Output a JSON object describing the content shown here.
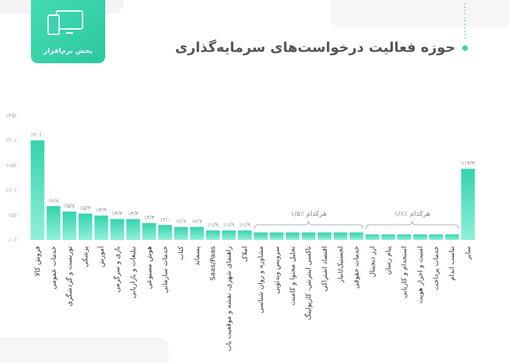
{
  "header": {
    "title": "حوزه فعالیت درخواست‌های سرمایه‌گذاری",
    "badge": "بخش نرم‌افزار"
  },
  "chart_data": {
    "type": "bar",
    "categories": [
      "فروش کالا",
      "خدمات عمومی",
      "توریست و گردشگری",
      "پزشکی",
      "آموزش",
      "بازی و سرگرمی",
      "تبلیغات و بازاریابی",
      "هوش مصنوعی",
      "خدمات سازمانی",
      "کتاب",
      "پسماند",
      "Saas/Paas",
      "راهنمای شهری، نقشه و موقعیت یاب",
      "املاک",
      "مشاوره و روان شناسی",
      "سرویس ویدئویی",
      "تحلیل محتوا و کامنت",
      "تاکسی اینترنتی، کارپولینگ",
      "اقتصاد اشتراکی",
      "لجستیک/انبار",
      "خدمات حقوقی",
      "ارز دیجیتال",
      "پیام رسان",
      "استخدام و کاریابی",
      "امنیت و احراز هویت",
      "خدمات پرداخت",
      "تناسب اندام",
      "سایر"
    ],
    "values": [
      20.0,
      6.8,
      5.7,
      5.3,
      4.9,
      4.2,
      4.2,
      3.4,
      3.0,
      2.6,
      2.6,
      1.9,
      1.9,
      1.9,
      1.5,
      1.5,
      1.5,
      1.5,
      1.5,
      1.5,
      1.5,
      1.1,
      1.1,
      1.1,
      1.1,
      1.1,
      1.1,
      14.3
    ],
    "value_labels": [
      "٪۲۰/۰",
      "٪۶/۸",
      "٪۵/۷",
      "٪۵/۳",
      "٪۴/۹",
      "٪۴/۲",
      "٪۴/۲",
      "٪۳/۴",
      "٪۳/۰",
      "٪۲/۶",
      "٪۲/۶",
      "٪۱/۹",
      "٪۱/۹",
      "٪۱/۹",
      null,
      null,
      null,
      null,
      null,
      null,
      null,
      null,
      null,
      null,
      null,
      null,
      null,
      "٪۱۴/۳"
    ],
    "color": "#34d3ad",
    "ylim": [
      0,
      25
    ],
    "yticks": [
      {
        "value": 0,
        "label": "٪۰/۰"
      },
      {
        "value": 5,
        "label": "٪۵/۰"
      },
      {
        "value": 10,
        "label": "٪۱۰/۰"
      },
      {
        "value": 15,
        "label": "٪۱۵/۰"
      },
      {
        "value": 20,
        "label": "٪۲۰/۰"
      },
      {
        "value": 25,
        "label": "٪۲۵/۰"
      }
    ],
    "annotations": [
      "هرکدام ٪۱/۵",
      "هرکدام ٪۱/۱"
    ]
  }
}
